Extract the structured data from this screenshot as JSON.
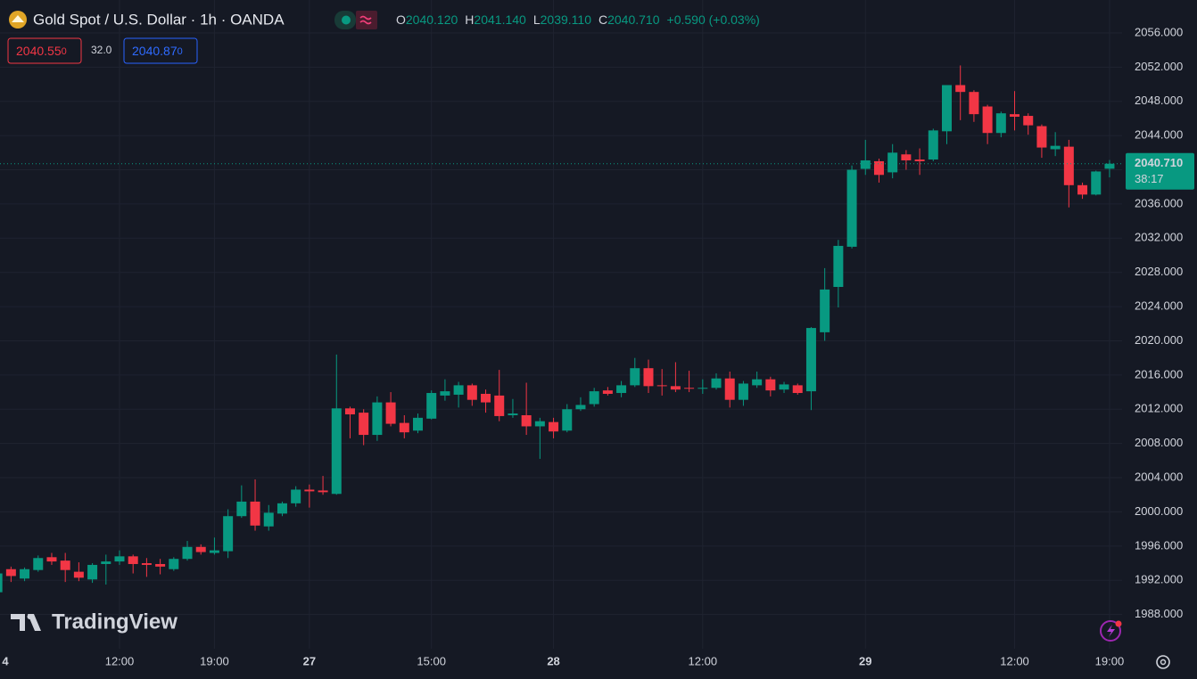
{
  "header": {
    "symbol": "Gold Spot / U.S. Dollar · 1h · OANDA",
    "ohlc": [
      {
        "label": "O",
        "value": "2040.120"
      },
      {
        "label": "H",
        "value": "2041.140"
      },
      {
        "label": "L",
        "value": "2039.110"
      },
      {
        "label": "C",
        "value": "2040.710"
      }
    ],
    "change": "+0.590 (+0.03%)",
    "sell": {
      "price": "2040.55",
      "pip": "0"
    },
    "spread": "32.0",
    "buy": {
      "price": "2040.87",
      "pip": "0"
    },
    "watermark": "TradingView"
  },
  "chart_data": {
    "type": "candlestick",
    "categories": [
      "4",
      null,
      null,
      null,
      null,
      null,
      null,
      null,
      null,
      "12:00",
      null,
      null,
      null,
      null,
      null,
      null,
      "19:00",
      null,
      null,
      null,
      null,
      null,
      null,
      "27",
      null,
      null,
      null,
      null,
      null,
      null,
      null,
      null,
      "15:00",
      null,
      null,
      null,
      null,
      null,
      null,
      null,
      null,
      "28",
      null,
      null,
      null,
      null,
      null,
      null,
      null,
      null,
      null,
      null,
      "12:00",
      null,
      null,
      null,
      null,
      null,
      null,
      null,
      null,
      null,
      null,
      null,
      "29",
      null,
      null,
      null,
      null,
      null,
      null,
      null,
      null,
      null,
      null,
      "12:00",
      null,
      null,
      null,
      null,
      null,
      null,
      "19:00"
    ],
    "open": [
      1990.6,
      1993.3,
      1992.2,
      1993.2,
      1994.7,
      1994.3,
      1993.0,
      1992.1,
      1993.9,
      1994.2,
      1994.8,
      1994.0,
      1993.9,
      1993.3,
      1994.5,
      1995.9,
      1995.2,
      1995.4,
      1999.5,
      2001.2,
      1998.3,
      1999.8,
      2001.0,
      2002.6,
      2002.5,
      2002.1,
      2012.1,
      2011.6,
      2009.0,
      2012.8,
      2010.4,
      2009.5,
      2010.9,
      2013.6,
      2013.7,
      2014.8,
      2013.8,
      2013.6,
      2011.3,
      2011.3,
      2010.0,
      2010.5,
      2009.5,
      2012.0,
      2012.6,
      2014.2,
      2013.9,
      2014.8,
      2016.8,
      2014.8,
      2014.7,
      2014.5,
      2014.4,
      2014.5,
      2015.6,
      2013.1,
      2014.8,
      2015.5,
      2014.3,
      2014.8,
      2014.1,
      2021.0,
      2026.3,
      2031.0,
      2040.1,
      2041.0,
      2039.7,
      2041.8,
      2041.2,
      2041.2,
      2044.5,
      2049.9,
      2049.1,
      2047.4,
      2044.3,
      2046.5,
      2046.3,
      2045.1,
      2042.4,
      2042.7,
      2038.2,
      2037.1,
      2040.12
    ],
    "high": [
      1993.0,
      1993.6,
      1993.5,
      1994.9,
      1995.2,
      1995.2,
      1994.1,
      1994.0,
      1995.0,
      1995.5,
      1995.0,
      1994.6,
      1994.5,
      1994.7,
      1996.6,
      1996.2,
      1997.0,
      2000.3,
      2003.1,
      2003.8,
      2000.8,
      2001.2,
      2003.0,
      2003.2,
      2004.2,
      2018.4,
      2012.3,
      2012.0,
      2013.5,
      2014.0,
      2011.3,
      2011.5,
      2014.2,
      2015.5,
      2015.2,
      2015.0,
      2014.3,
      2016.6,
      2013.2,
      2015.1,
      2011.0,
      2011.0,
      2012.6,
      2013.4,
      2014.5,
      2014.6,
      2015.3,
      2018.0,
      2017.8,
      2016.7,
      2017.5,
      2016.5,
      2015.5,
      2016.2,
      2016.4,
      2015.3,
      2016.4,
      2015.8,
      2015.2,
      2015.0,
      2021.6,
      2028.5,
      2031.8,
      2040.5,
      2043.5,
      2041.3,
      2043.0,
      2042.3,
      2042.5,
      2044.8,
      2049.9,
      2052.2,
      2049.3,
      2047.6,
      2046.8,
      2049.2,
      2046.6,
      2045.3,
      2044.4,
      2043.5,
      2038.5,
      2039.9,
      2041.14
    ],
    "low": [
      1990.3,
      1991.8,
      1991.9,
      1993.0,
      1993.8,
      1991.8,
      1991.9,
      1991.7,
      1991.5,
      1993.8,
      1992.8,
      1992.4,
      1992.7,
      1993.1,
      1994.3,
      1995.0,
      1995.0,
      1994.6,
      1999.3,
      1997.8,
      1997.8,
      1999.5,
      2000.6,
      2000.5,
      2002.0,
      2002.0,
      2008.6,
      2007.8,
      2008.3,
      2010.0,
      2008.6,
      2009.2,
      2010.8,
      2013.0,
      2012.2,
      2012.4,
      2011.6,
      2010.6,
      2011.0,
      2009.0,
      2006.2,
      2008.6,
      2009.3,
      2011.8,
      2012.3,
      2013.6,
      2013.4,
      2014.6,
      2013.9,
      2013.6,
      2014.0,
      2014.0,
      2013.8,
      2014.3,
      2012.2,
      2012.4,
      2014.5,
      2013.5,
      2013.9,
      2013.7,
      2011.9,
      2020.0,
      2023.9,
      2030.8,
      2039.4,
      2038.5,
      2039.0,
      2040.0,
      2039.4,
      2041.0,
      2043.0,
      2045.8,
      2045.6,
      2043.0,
      2043.8,
      2044.6,
      2044.1,
      2041.4,
      2041.6,
      2035.6,
      2036.6,
      2037.0,
      2039.11
    ],
    "close": [
      1992.8,
      1992.5,
      1993.3,
      1994.6,
      1994.2,
      1993.2,
      1992.3,
      1993.8,
      1994.2,
      1994.8,
      1993.9,
      1993.8,
      1993.6,
      1994.5,
      1995.9,
      1995.3,
      1995.5,
      1999.5,
      2001.2,
      1998.4,
      1999.9,
      2001.0,
      2002.6,
      2002.4,
      2002.3,
      2012.1,
      2011.4,
      2009.0,
      2012.8,
      2010.3,
      2009.3,
      2011.0,
      2013.9,
      2014.1,
      2014.8,
      2013.1,
      2012.8,
      2011.2,
      2011.5,
      2010.0,
      2010.6,
      2009.4,
      2012.0,
      2012.5,
      2014.1,
      2013.8,
      2014.8,
      2016.8,
      2014.7,
      2014.7,
      2014.3,
      2014.4,
      2014.5,
      2015.6,
      2013.1,
      2015.0,
      2015.5,
      2014.2,
      2014.9,
      2013.9,
      2021.5,
      2026.0,
      2031.1,
      2040.0,
      2041.1,
      2039.4,
      2042.0,
      2041.1,
      2041.0,
      2044.6,
      2049.9,
      2049.1,
      2046.5,
      2044.3,
      2046.6,
      2046.2,
      2045.2,
      2042.6,
      2042.8,
      2038.2,
      2037.1,
      2039.8,
      2040.71
    ],
    "up_color": "#089981",
    "down_color": "#f23645",
    "last_price": 2040.71,
    "last_price_label": "2040.710",
    "countdown": "38:17",
    "ylim": [
      1984.0,
      2059.85
    ],
    "yticks": [
      {
        "value": 1988,
        "label": "1988.000"
      },
      {
        "value": 1992,
        "label": "1992.000"
      },
      {
        "value": 1996,
        "label": "1996.000"
      },
      {
        "value": 2000,
        "label": "2000.000"
      },
      {
        "value": 2004,
        "label": "2004.000"
      },
      {
        "value": 2008,
        "label": "2008.000"
      },
      {
        "value": 2012,
        "label": "2012.000"
      },
      {
        "value": 2016,
        "label": "2016.000"
      },
      {
        "value": 2020,
        "label": "2020.000"
      },
      {
        "value": 2024,
        "label": "2024.000"
      },
      {
        "value": 2028,
        "label": "2028.000"
      },
      {
        "value": 2032,
        "label": "2032.000"
      },
      {
        "value": 2036,
        "label": "2036.000"
      },
      {
        "value": 2040,
        "label": "2040.000"
      },
      {
        "value": 2044,
        "label": "2044.000"
      },
      {
        "value": 2048,
        "label": "2048.000"
      },
      {
        "value": 2052,
        "label": "2052.000"
      },
      {
        "value": 2056,
        "label": "2056.000"
      }
    ],
    "grid": true
  }
}
